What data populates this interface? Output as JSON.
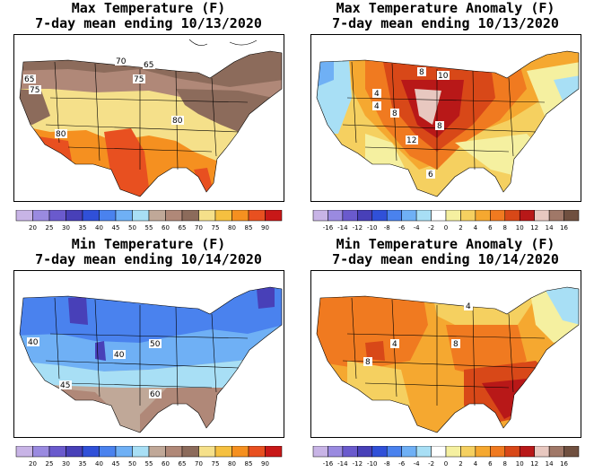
{
  "panels": [
    {
      "title_line1": "Max Temperature (F)",
      "title_line2": "7-day mean ending 10/13/2020",
      "scale": "abs",
      "colorbar_labels": [
        "20",
        "25",
        "30",
        "35",
        "40",
        "45",
        "50",
        "55",
        "60",
        "65",
        "70",
        "75",
        "80",
        "85",
        "90"
      ],
      "contour_labels": [
        "70",
        "65",
        "75",
        "65",
        "75",
        "80",
        "80"
      ]
    },
    {
      "title_line1": "Max Temperature Anomaly (F)",
      "title_line2": "7-day mean ending 10/13/2020",
      "scale": "anom",
      "colorbar_labels": [
        "-16",
        "-14",
        "-12",
        "-10",
        "-8",
        "-6",
        "-4",
        "-2",
        "0",
        "2",
        "4",
        "6",
        "8",
        "10",
        "12",
        "14",
        "16"
      ],
      "contour_labels": [
        "8",
        "10",
        "4",
        "8",
        "8",
        "12",
        "4",
        "6"
      ]
    },
    {
      "title_line1": "Min Temperature (F)",
      "title_line2": "7-day mean ending 10/14/2020",
      "scale": "abs",
      "colorbar_labels": [
        "20",
        "25",
        "30",
        "35",
        "40",
        "45",
        "50",
        "55",
        "60",
        "65",
        "70",
        "75",
        "80",
        "85",
        "90"
      ],
      "contour_labels": [
        "40",
        "50",
        "40",
        "45",
        "60"
      ]
    },
    {
      "title_line1": "Min Temperature Anomaly (F)",
      "title_line2": "7-day mean ending 10/14/2020",
      "scale": "anom",
      "colorbar_labels": [
        "-16",
        "-14",
        "-12",
        "-10",
        "-8",
        "-6",
        "-4",
        "-2",
        "0",
        "2",
        "4",
        "6",
        "8",
        "10",
        "12",
        "14",
        "16"
      ],
      "contour_labels": [
        "4",
        "4",
        "8",
        "8"
      ]
    }
  ],
  "colors": {
    "abs": [
      "#c8b4e6",
      "#9a8ae0",
      "#6a5acd",
      "#4840b8",
      "#3050d8",
      "#4a82ee",
      "#6fb0f5",
      "#a8dff5",
      "#c0a898",
      "#b08878",
      "#8c6b5b",
      "#f5e08a",
      "#f5c040",
      "#f59020",
      "#e85020",
      "#c81818"
    ],
    "anom": [
      "#c8b4e6",
      "#9a8ae0",
      "#6a5acd",
      "#4840b8",
      "#3050d8",
      "#4a82ee",
      "#6fb0f5",
      "#a8dff5",
      "#ffffff",
      "#f5f0a0",
      "#f5d060",
      "#f5a830",
      "#f07a20",
      "#d84818",
      "#b81818",
      "#e8c8c0",
      "#a07868",
      "#705040"
    ]
  }
}
